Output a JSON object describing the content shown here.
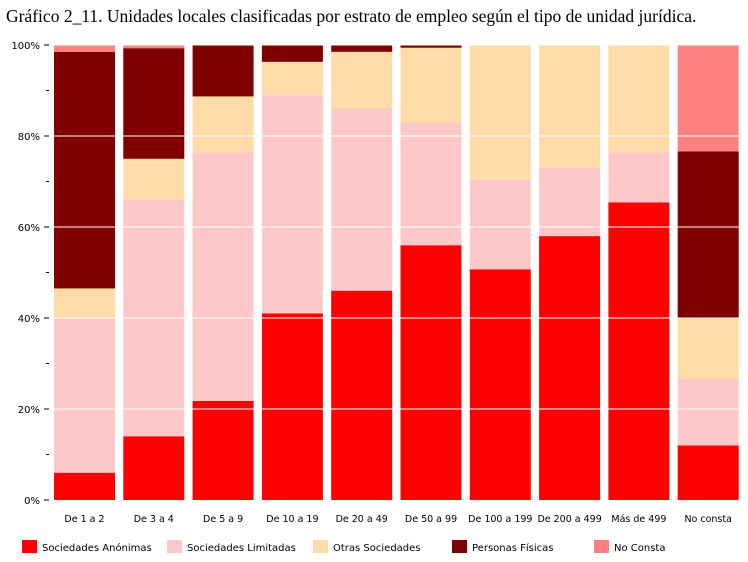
{
  "chart_data": {
    "type": "bar",
    "stacked": true,
    "title": "Gráfico 2_11. Unidades locales clasificadas por estrato de empleo según el tipo de unidad jurídica.",
    "xlabel": "",
    "ylabel": "",
    "ylim": [
      0,
      100
    ],
    "yticks": [
      0,
      20,
      40,
      60,
      80,
      100
    ],
    "ytick_labels": [
      "0%",
      "20%",
      "40%",
      "60%",
      "80%",
      "100%"
    ],
    "grid": "horizontal",
    "legend_position": "bottom",
    "categories": [
      "De 1 a 2",
      "De 3 a 4",
      "De 5 a 9",
      "De 10 a 19",
      "De 20 a 49",
      "De 50 a 99",
      "De 100 a 199",
      "De 200 a 499",
      "Más de 499",
      "No consta"
    ],
    "series": [
      {
        "name": "Sociedades Anónimas",
        "color": "#ff0000",
        "values": [
          6,
          14,
          21.8,
          41,
          46,
          56,
          50.7,
          58,
          65.4,
          12
        ]
      },
      {
        "name": "Sociedades Limitadas",
        "color": "#ffc8c8",
        "values": [
          34,
          52,
          54.6,
          48,
          40.2,
          27,
          19.7,
          15,
          11,
          14.7
        ]
      },
      {
        "name": "Otras Sociedades",
        "color": "#ffdba8",
        "values": [
          6.5,
          9,
          12.3,
          7.3,
          12.3,
          16.4,
          29.6,
          27,
          23.6,
          13.3
        ]
      },
      {
        "name": "Personas Físicas",
        "color": "#800000",
        "values": [
          52,
          24.3,
          11.3,
          3.7,
          1.5,
          0.6,
          0,
          0,
          0,
          36.6
        ]
      },
      {
        "name": "No Consta",
        "color": "#ff8080",
        "values": [
          1.5,
          0.7,
          0,
          0,
          0,
          0,
          0,
          0,
          0,
          23.4
        ]
      }
    ]
  }
}
